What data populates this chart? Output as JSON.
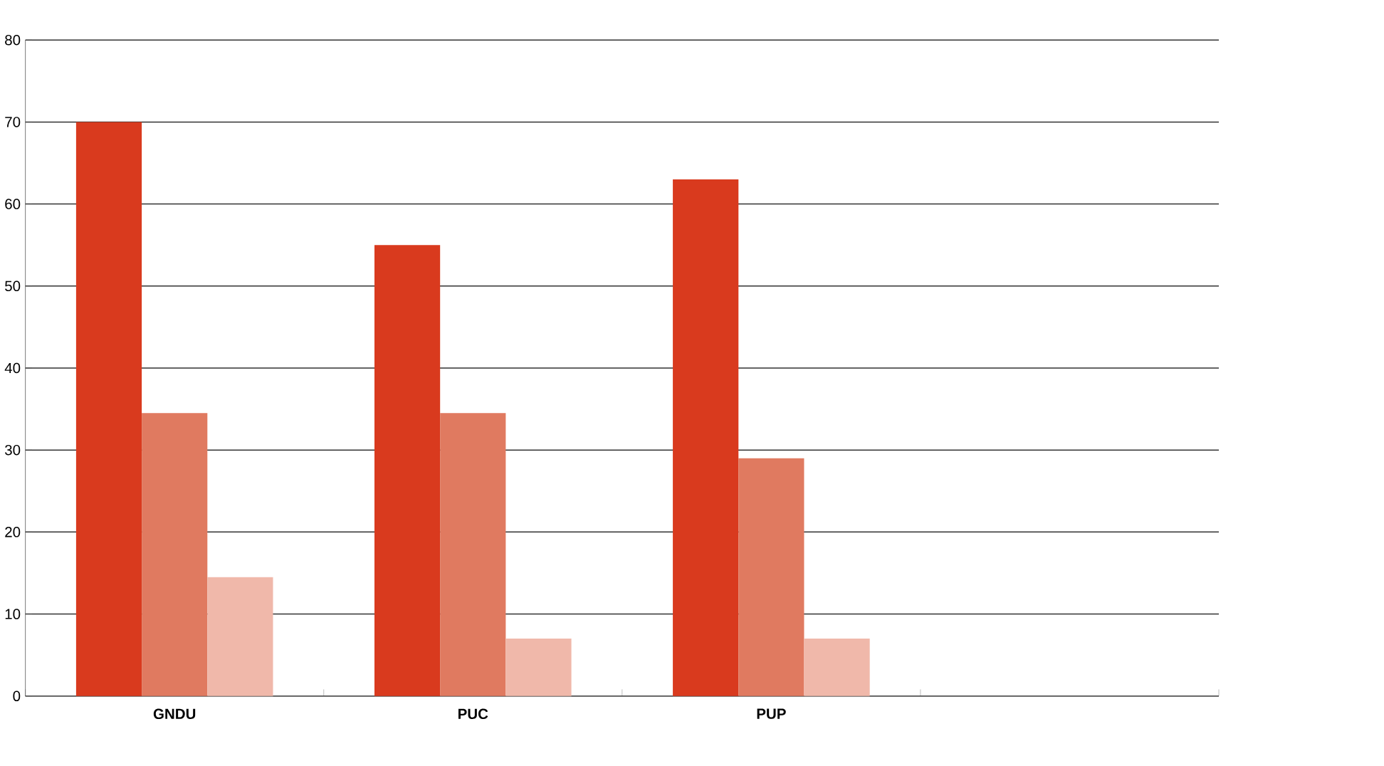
{
  "chart_data": {
    "type": "bar",
    "categories": [
      "GNDU",
      "PUC",
      "PUP",
      null
    ],
    "series": [
      {
        "color": "#d93a1e",
        "values": [
          70,
          55,
          63,
          null
        ]
      },
      {
        "color": "#e07a60",
        "values": [
          34.5,
          34.5,
          29,
          null
        ]
      },
      {
        "color": "#f0b8aa",
        "values": [
          14.5,
          7,
          7,
          null
        ]
      }
    ],
    "ylim": [
      0,
      80
    ],
    "yticks": [
      0,
      10,
      20,
      30,
      40,
      50,
      60,
      70,
      80
    ],
    "grid": "y"
  }
}
